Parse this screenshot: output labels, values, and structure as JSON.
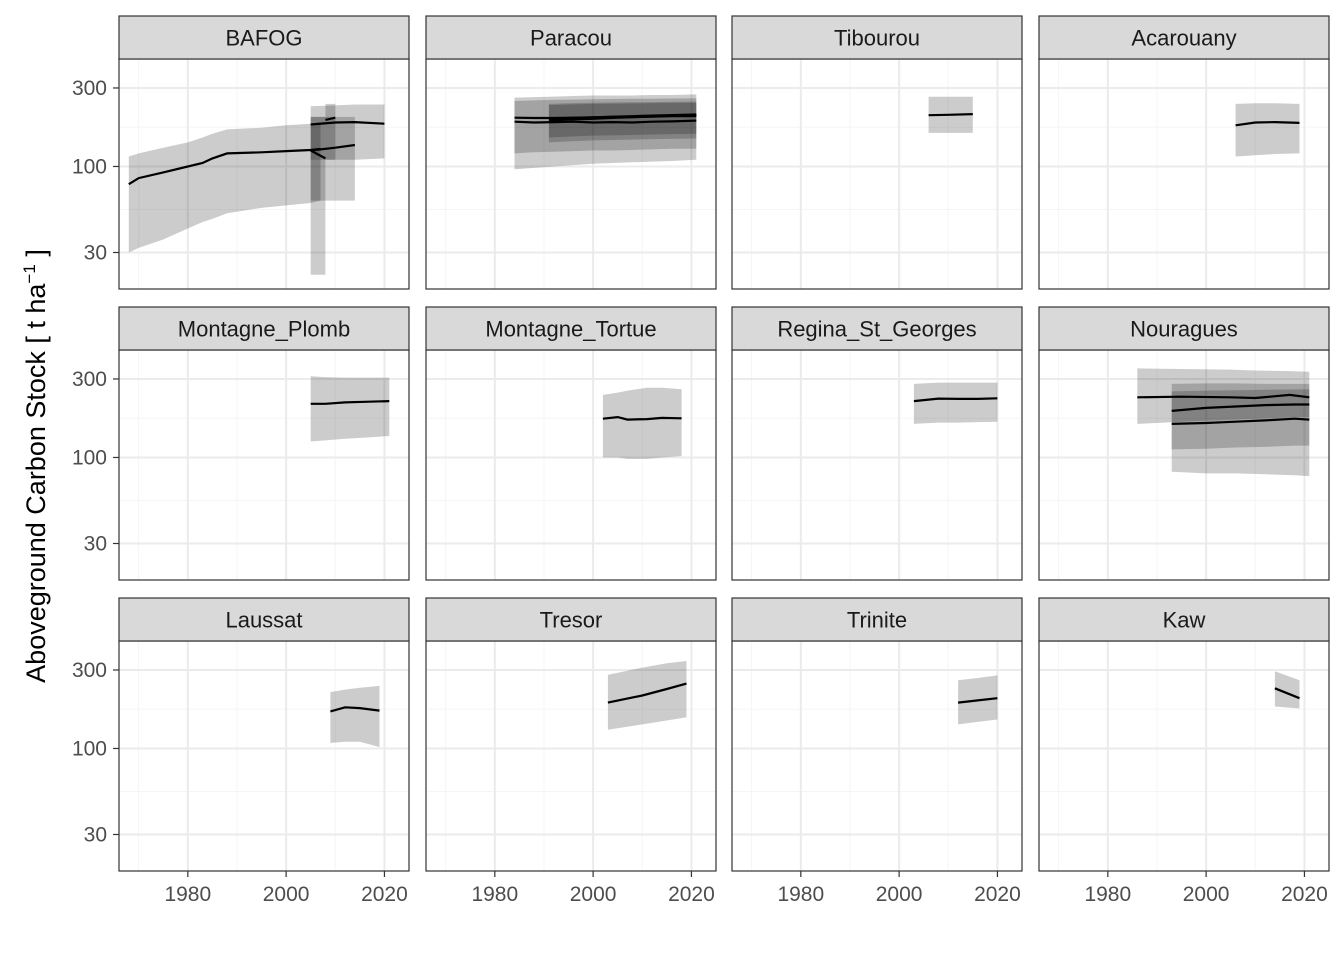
{
  "chart_data": {
    "type": "area",
    "facet_layout": "4 columns x 3 rows",
    "ylabel": "Aboveground Carbon Stock [ t ha",
    "ylabel_unit_superscript": "−1",
    "ylabel_end": " ]",
    "yscale": "log",
    "ylim": [
      18,
      450
    ],
    "xlim": [
      1966,
      2025
    ],
    "xticks": [
      1980,
      2000,
      2020
    ],
    "yticks": [
      30,
      100,
      300
    ],
    "grid": true,
    "legend": "none",
    "colors": {
      "line": "#000000",
      "ribbon": "#bdbdbd",
      "strip_fill": "#d9d9d9",
      "panel_border": "#333333",
      "grid_major": "#ebebeb",
      "grid_minor": "#f5f5f5",
      "axis_text": "#4d4d4d"
    },
    "panels": [
      {
        "title": "BAFOG",
        "series": [
          {
            "x": [
              1968,
              1970,
              1975,
              1980,
              1983,
              1985,
              1988,
              1995,
              2000,
              2005,
              2007
            ],
            "y": [
              78,
              85,
              92,
              100,
              105,
              112,
              120,
              122,
              124,
              126,
              128
            ],
            "lower": [
              30,
              32,
              36,
              42,
              46,
              48,
              52,
              56,
              58,
              60,
              62
            ],
            "upper": [
              115,
              120,
              130,
              140,
              150,
              158,
              168,
              172,
              178,
              182,
              186
            ]
          },
          {
            "x": [
              2005,
              2008
            ],
            "y": [
              125,
              112
            ],
            "lower": [
              22,
              22
            ],
            "upper": [
              200,
              200
            ]
          },
          {
            "x": [
              2005,
              2010,
              2014
            ],
            "y": [
              125,
              130,
              135
            ],
            "lower": [
              62,
              62,
              62
            ],
            "upper": [
              200,
              200,
              200
            ]
          },
          {
            "x": [
              2005,
              2010,
              2014,
              2020
            ],
            "y": [
              180,
              185,
              186,
              182
            ],
            "lower": [
              110,
              110,
              110,
              112
            ],
            "upper": [
              232,
              235,
              238,
              238
            ]
          },
          {
            "x": [
              2008,
              2010
            ],
            "y": [
              192,
              198
            ],
            "lower": [
              110,
              110
            ],
            "upper": [
              240,
              240
            ]
          }
        ]
      },
      {
        "title": "Paracou",
        "series": [
          {
            "x": [
              1984,
              1988,
              1992,
              1996,
              2000,
              2004,
              2008,
              2012,
              2016,
              2021
            ],
            "y": [
              198,
              197,
              197,
              198,
              199,
              200,
              200,
              201,
              202,
              202
            ],
            "lower": [
              96,
              98,
              100,
              102,
              104,
              105,
              106,
              107,
              108,
              110
            ],
            "upper": [
              262,
              264,
              266,
              268,
              270,
              270,
              270,
              272,
              272,
              274
            ]
          },
          {
            "x": [
              1984,
              1988,
              1992,
              1996,
              2000,
              2004,
              2008,
              2012,
              2016,
              2021
            ],
            "y": [
              187,
              185,
              186,
              187,
              185,
              186,
              185,
              187,
              188,
              190
            ],
            "lower": [
              120,
              122,
              123,
              124,
              125,
              125,
              126,
              127,
              128,
              128
            ],
            "upper": [
              250,
              252,
              254,
              255,
              256,
              257,
              258,
              258,
              259,
              260
            ]
          },
          {
            "x": [
              1991,
              1995,
              2000,
              2005,
              2010,
              2015,
              2021
            ],
            "y": [
              195,
              197,
              199,
              201,
              203,
              205,
              207
            ],
            "lower": [
              140,
              142,
              144,
              145,
              146,
              147,
              148
            ],
            "upper": [
              240,
              242,
              244,
              245,
              246,
              247,
              248
            ]
          },
          {
            "x": [
              1991,
              1995,
              2000,
              2005,
              2010,
              2015,
              2021
            ],
            "y": [
              190,
              193,
              195,
              198,
              200,
              203,
              205
            ],
            "lower": [
              150,
              152,
              154,
              155,
              156,
              157,
              158
            ],
            "upper": [
              236,
              238,
              240,
              241,
              242,
              243,
              244
            ]
          }
        ]
      },
      {
        "title": "Tibourou",
        "series": [
          {
            "x": [
              2006,
              2010,
              2015
            ],
            "y": [
              205,
              206,
              208
            ],
            "lower": [
              160,
              160,
              160
            ],
            "upper": [
              265,
              265,
              265
            ]
          }
        ]
      },
      {
        "title": "Acarouany",
        "series": [
          {
            "x": [
              2006,
              2010,
              2014,
              2019
            ],
            "y": [
              178,
              185,
              186,
              184
            ],
            "lower": [
              115,
              117,
              119,
              120
            ],
            "upper": [
              240,
              242,
              242,
              240
            ]
          }
        ]
      },
      {
        "title": "Montagne_Plomb",
        "series": [
          {
            "x": [
              2005,
              2008,
              2012,
              2016,
              2021
            ],
            "y": [
              212,
              212,
              216,
              218,
              220
            ],
            "lower": [
              125,
              127,
              130,
              132,
              135
            ],
            "upper": [
              312,
              308,
              306,
              306,
              306
            ]
          }
        ]
      },
      {
        "title": "Montagne_Tortue",
        "series": [
          {
            "x": [
              2002,
              2005,
              2007,
              2011,
              2014,
              2018
            ],
            "y": [
              172,
              176,
              170,
              171,
              174,
              173
            ],
            "lower": [
              100,
              100,
              98,
              98,
              100,
              102
            ],
            "upper": [
              240,
              248,
              255,
              265,
              265,
              260
            ]
          }
        ]
      },
      {
        "title": "Regina_St_Georges",
        "series": [
          {
            "x": [
              2003,
              2008,
              2012,
              2016,
              2020
            ],
            "y": [
              220,
              228,
              227,
              227,
              229
            ],
            "lower": [
              160,
              163,
              163,
              164,
              165
            ],
            "upper": [
              280,
              285,
              285,
              285,
              285
            ]
          }
        ]
      },
      {
        "title": "Nouragues",
        "series": [
          {
            "x": [
              1986,
              1995,
              2005,
              2010,
              2017,
              2021
            ],
            "y": [
              232,
              234,
              232,
              230,
              240,
              232
            ],
            "lower": [
              160,
              165,
              170,
              172,
              175,
              176
            ],
            "upper": [
              348,
              345,
              342,
              338,
              335,
              332
            ]
          },
          {
            "x": [
              1993,
              2000,
              2006,
              2012,
              2018,
              2021
            ],
            "y": [
              192,
              200,
              204,
              208,
              210,
              210
            ],
            "lower": [
              82,
              80,
              80,
              79,
              78,
              77
            ],
            "upper": [
              280,
              282,
              282,
              280,
              280,
              280
            ]
          },
          {
            "x": [
              1993,
              2000,
              2006,
              2012,
              2018,
              2021
            ],
            "y": [
              160,
              162,
              165,
              168,
              172,
              170
            ],
            "lower": [
              112,
              113,
              115,
              116,
              118,
              118
            ],
            "upper": [
              252,
              255,
              256,
              258,
              259,
              260
            ]
          }
        ]
      },
      {
        "title": "Laussat",
        "series": [
          {
            "x": [
              2009,
              2012,
              2015,
              2019
            ],
            "y": [
              168,
              178,
              176,
              170
            ],
            "lower": [
              108,
              110,
              110,
              102
            ],
            "upper": [
              220,
              228,
              234,
              240
            ]
          }
        ]
      },
      {
        "title": "Tresor",
        "series": [
          {
            "x": [
              2003,
              2010,
              2015,
              2019
            ],
            "y": [
              190,
              210,
              230,
              248
            ],
            "lower": [
              130,
              140,
              148,
              155
            ],
            "upper": [
              280,
              310,
              330,
              340
            ]
          }
        ]
      },
      {
        "title": "Trinite",
        "series": [
          {
            "x": [
              2012,
              2016,
              2020
            ],
            "y": [
              190,
              196,
              202
            ],
            "lower": [
              140,
              145,
              150
            ],
            "upper": [
              260,
              268,
              278
            ]
          }
        ]
      },
      {
        "title": "Kaw",
        "series": [
          {
            "x": [
              2014,
              2019
            ],
            "y": [
              232,
              202
            ],
            "lower": [
              180,
              175
            ],
            "upper": [
              295,
              260
            ]
          }
        ]
      }
    ]
  }
}
